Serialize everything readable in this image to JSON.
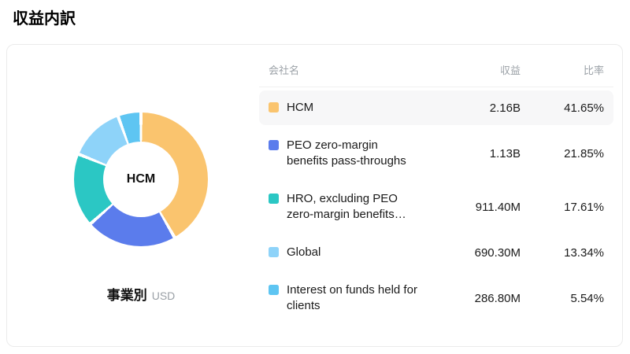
{
  "page": {
    "title": "収益内訳"
  },
  "chart_data": {
    "type": "pie",
    "title": "事業別",
    "unit": "USD",
    "center_label": "HCM",
    "legend_position": "right-table",
    "categories": [
      "HCM",
      "PEO zero-margin benefits pass-throughs",
      "HRO, excluding PEO zero-margin benefits…",
      "Global",
      "Interest on funds held for clients"
    ],
    "values": [
      41.65,
      21.85,
      17.61,
      13.34,
      5.54
    ],
    "revenues": [
      "2.16B",
      "1.13B",
      "911.40M",
      "690.30M",
      "286.80M"
    ],
    "colors": [
      "#FAC46E",
      "#5B7CEC",
      "#2BC7C4",
      "#8ED3F9",
      "#5EC5F2"
    ]
  },
  "donut": {
    "center_label": "HCM",
    "caption": "事業別",
    "unit": "USD"
  },
  "table": {
    "headers": {
      "company": "会社名",
      "revenue": "収益",
      "ratio": "比率"
    },
    "rows": [
      {
        "label": "HCM",
        "revenue": "2.16B",
        "ratio": "41.65%"
      },
      {
        "label": "PEO zero-margin benefits pass-throughs",
        "revenue": "1.13B",
        "ratio": "21.85%"
      },
      {
        "label": "HRO, excluding PEO zero-margin benefits…",
        "revenue": "911.40M",
        "ratio": "17.61%"
      },
      {
        "label": "Global",
        "revenue": "690.30M",
        "ratio": "13.34%"
      },
      {
        "label": "Interest on funds held for clients",
        "revenue": "286.80M",
        "ratio": "5.54%"
      }
    ]
  }
}
